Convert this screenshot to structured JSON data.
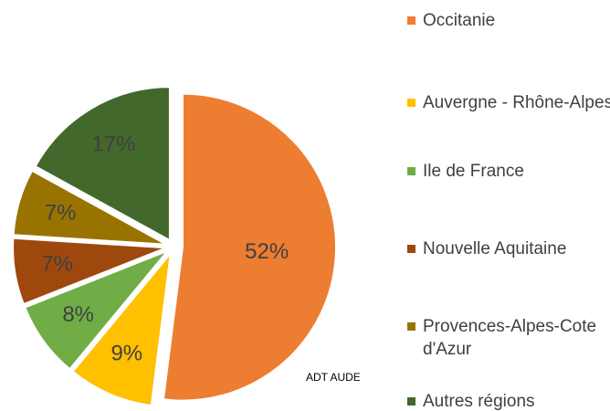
{
  "chart_data": {
    "type": "pie",
    "categories": [
      "Occitanie",
      "Auvergne - Rhône-Alpes",
      "Ile de France",
      "Nouvelle Aquitaine",
      "Provences-Alpes-Cote d'Azur",
      "Autres régions"
    ],
    "values": [
      52,
      9,
      8,
      7,
      7,
      17
    ],
    "value_labels": [
      "52%",
      "9%",
      "8%",
      "7%",
      "7%",
      "17%"
    ],
    "colors": [
      "#ED7D31",
      "#FFC000",
      "#70AD47",
      "#9E480E",
      "#997300",
      "#43682B"
    ],
    "annotation": "ADT AUDE"
  }
}
